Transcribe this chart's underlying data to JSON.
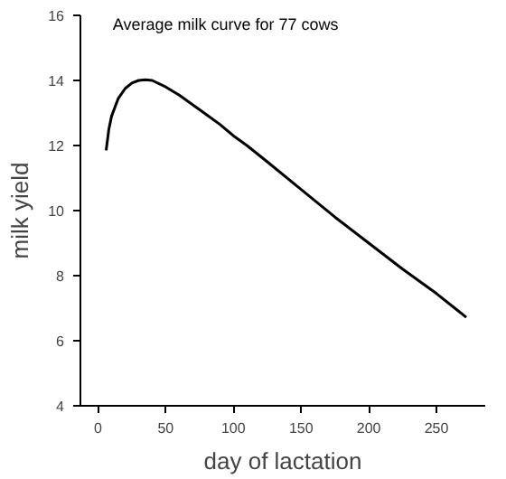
{
  "chart_data": {
    "type": "line",
    "title": "Average milk curve for 77 cows",
    "xlabel": "day of lactation",
    "ylabel": "milk yield",
    "x": [
      6,
      8,
      10,
      15,
      20,
      25,
      30,
      35,
      40,
      50,
      60,
      70,
      80,
      90,
      100,
      110,
      125,
      150,
      175,
      200,
      225,
      250,
      272
    ],
    "series": [
      {
        "color": "#000000",
        "values": [
          11.85,
          12.5,
          12.9,
          13.45,
          13.75,
          13.92,
          14.0,
          14.02,
          14.0,
          13.8,
          13.55,
          13.25,
          12.95,
          12.65,
          12.3,
          12.0,
          11.5,
          10.65,
          9.8,
          9.0,
          8.2,
          7.45,
          6.72
        ]
      }
    ],
    "xlim": [
      -13,
      286
    ],
    "ylim": [
      4,
      16
    ],
    "xticks": [
      0,
      50,
      100,
      150,
      200,
      250
    ],
    "yticks": [
      4,
      6,
      8,
      10,
      12,
      14,
      16
    ],
    "grid": false,
    "marker": "none",
    "line_style": "solid"
  }
}
